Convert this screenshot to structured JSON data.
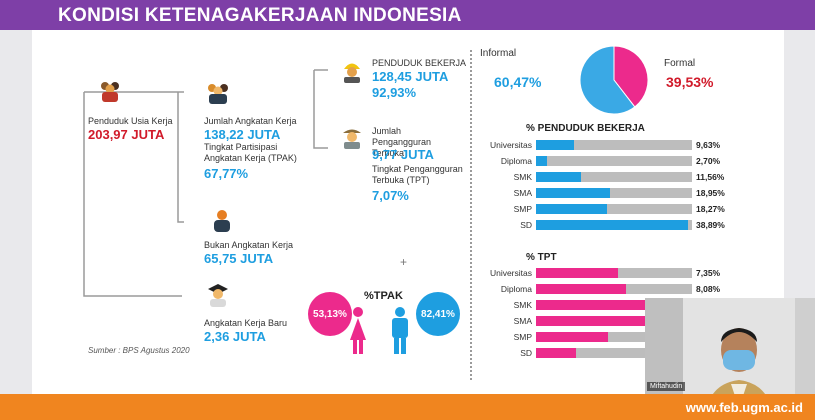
{
  "header": {
    "title": "KONDISI KETENAGAKERJAAN INDONESIA"
  },
  "flow": {
    "usia_kerja": {
      "label": "Penduduk Usia Kerja",
      "value": "203,97 JUTA"
    },
    "angkatan_kerja": {
      "label": "Jumlah Angkatan Kerja",
      "value": "138,22 JUTA",
      "tpak_label": "Tingkat Partisipasi Angkatan Kerja (TPAK)",
      "tpak_value": "67,77%"
    },
    "bukan_angkatan": {
      "label": "Bukan Angkatan Kerja",
      "value": "65,75 JUTA"
    },
    "kerja_baru": {
      "label": "Angkatan Kerja Baru",
      "value": "2,36 JUTA"
    },
    "bekerja": {
      "label": "PENDUDUK BEKERJA",
      "value": "128,45 JUTA",
      "pct": "92,93%"
    },
    "pengangguran": {
      "label": "Jumlah Pengangguran Terbuka",
      "value": "9,77 JUTA",
      "tpt_label": "Tingkat Pengangguran Terbuka (TPT)",
      "tpt_value": "7,07%"
    },
    "source": "Sumber : BPS Agustus 2020"
  },
  "tpak_gender": {
    "title": "%TPAK",
    "female": "53,13%",
    "male": "82,41%",
    "plus": "+"
  },
  "pie": {
    "informal_label": "Informal",
    "informal_value": "60,47%",
    "formal_label": "Formal",
    "formal_value": "39,53%",
    "informal_pct": 60.47,
    "formal_pct": 39.53,
    "informal_color": "#3aa9e5",
    "formal_color": "#ec2a8c"
  },
  "chart_data": [
    {
      "type": "bar",
      "title": "% PENDUDUK BEKERJA",
      "categories": [
        "Universitas",
        "Diploma",
        "SMK",
        "SMA",
        "SMP",
        "SD"
      ],
      "values": [
        9.63,
        2.7,
        11.56,
        18.95,
        18.27,
        38.89
      ],
      "labels": [
        "9,63%",
        "2,70%",
        "11,56%",
        "18,95%",
        "18,27%",
        "38,89%"
      ],
      "ylim": [
        0,
        40
      ],
      "color": "#1e9ee0"
    },
    {
      "type": "bar",
      "title": "% TPT",
      "categories": [
        "Universitas",
        "Diploma",
        "SMK",
        "SMA",
        "SMP",
        "SD"
      ],
      "values": [
        7.35,
        8.08,
        13.55,
        9.86,
        6.46,
        3.61
      ],
      "labels": [
        "7,35%",
        "8,08%",
        "",
        "",
        "",
        ""
      ],
      "ylim": [
        0,
        14
      ],
      "color": "#ec2a8c"
    }
  ],
  "webcam": {
    "name": "Miftahudin"
  },
  "footer": {
    "url": "www.feb.ugm.ac.id"
  }
}
